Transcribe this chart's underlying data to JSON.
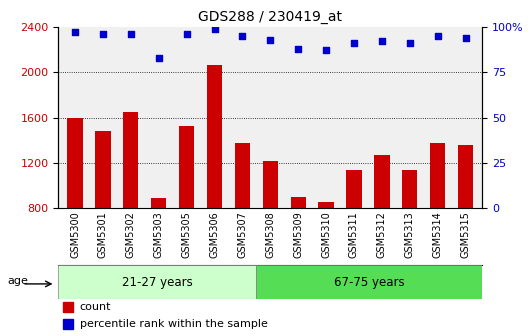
{
  "title": "GDS288 / 230419_at",
  "categories": [
    "GSM5300",
    "GSM5301",
    "GSM5302",
    "GSM5303",
    "GSM5305",
    "GSM5306",
    "GSM5307",
    "GSM5308",
    "GSM5309",
    "GSM5310",
    "GSM5311",
    "GSM5312",
    "GSM5313",
    "GSM5314",
    "GSM5315"
  ],
  "bar_values": [
    1600,
    1480,
    1650,
    890,
    1530,
    2060,
    1380,
    1220,
    900,
    860,
    1140,
    1270,
    1140,
    1380,
    1360
  ],
  "percentile_values": [
    97,
    96,
    96,
    83,
    96,
    99,
    95,
    93,
    88,
    87,
    91,
    92,
    91,
    95,
    94
  ],
  "bar_color": "#cc0000",
  "dot_color": "#0000cc",
  "ylim_left": [
    800,
    2400
  ],
  "ylim_right": [
    0,
    100
  ],
  "yticks_left": [
    800,
    1200,
    1600,
    2000,
    2400
  ],
  "yticks_right": [
    0,
    25,
    50,
    75,
    100
  ],
  "ytick_labels_right": [
    "0",
    "25",
    "50",
    "75",
    "100%"
  ],
  "group1_label": "21-27 years",
  "group2_label": "67-75 years",
  "group1_count": 7,
  "group2_count": 8,
  "age_label": "age",
  "legend_count": "count",
  "legend_percentile": "percentile rank within the sample",
  "plot_bg_color": "#f0f0f0",
  "xtick_bg_color": "#d0d0d0",
  "group1_color": "#ccffcc",
  "group2_color": "#55dd55",
  "bar_label_color": "#cc0000",
  "right_axis_color": "#0000cc",
  "title_color": "#000000"
}
